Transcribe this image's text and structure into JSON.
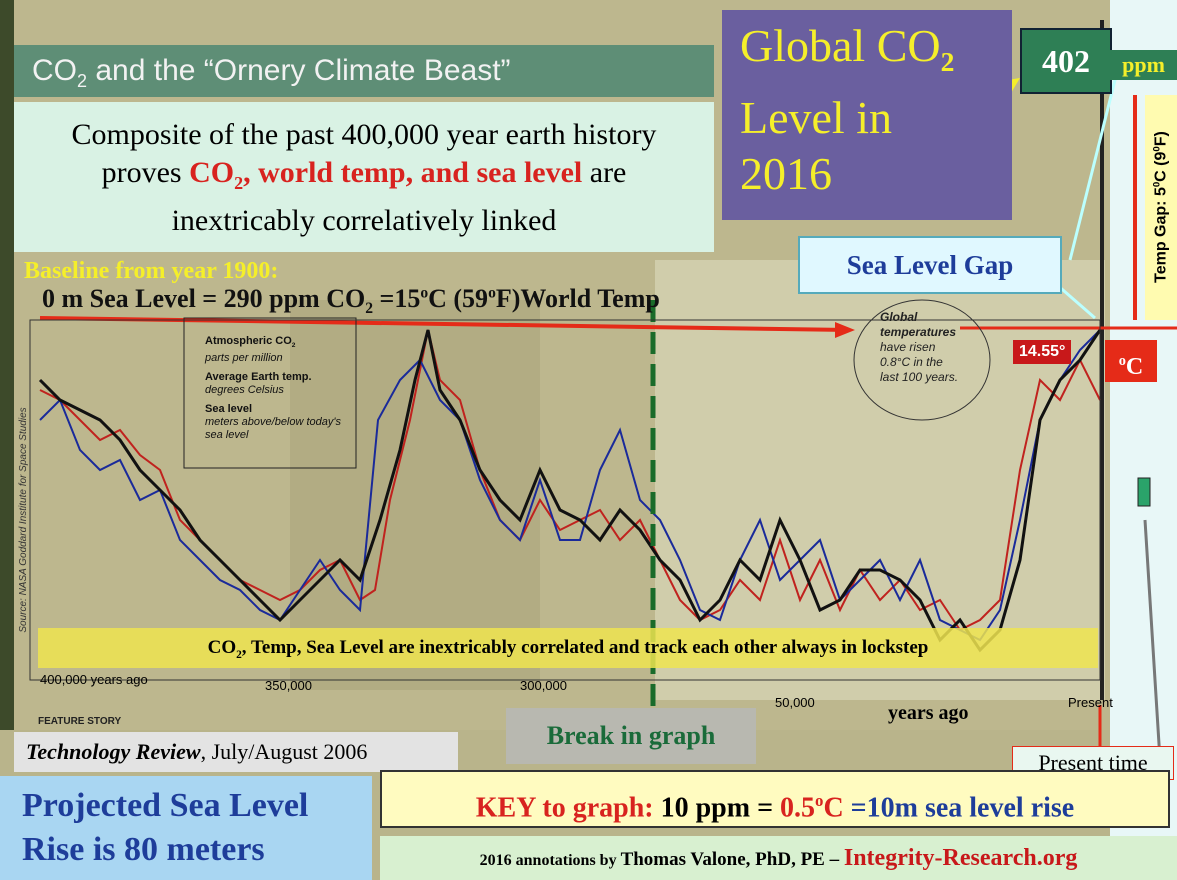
{
  "title": {
    "a": "CO",
    "sub": "2",
    "b": " and the “Ornery Climate Beast”"
  },
  "intro": {
    "a": "Composite of the past 400,000 year earth history proves ",
    "red_a": "CO",
    "red_sub": "2",
    "red_b": ", world temp, and sea level",
    "b": " are inextricably correlatively linked"
  },
  "global_box": {
    "line1": "Global CO",
    "sub": "2",
    "line2": "Level in",
    "line3": "2016"
  },
  "ppm": {
    "value": "402",
    "unit": "ppm"
  },
  "temp_gap": {
    "a": "Temp Gap: 5",
    "sup1": "0",
    "b": "C (9",
    "sup2": "0",
    "c": "F)"
  },
  "sea_level_gap": "Sea Level Gap",
  "baseline": {
    "title": "Baseline from year 1900:",
    "a": "0 m Sea Level = 290 ppm CO",
    "sub": "2",
    "b": " =15",
    "sup1": "o",
    "c": "C (59",
    "sup2": "o",
    "d": "F)World Temp"
  },
  "legend": {
    "co2": {
      "name": "Atmospheric CO",
      "sub": "2",
      "desc": "parts per million"
    },
    "temp": {
      "name": "Average Earth temp.",
      "desc": "degrees Celsius"
    },
    "sea": {
      "name": "Sea level",
      "desc": "meters above/below today's sea level"
    }
  },
  "note": {
    "a": "Global",
    "b": "temperatures",
    "c": "have risen",
    "d": "0.8°C in the",
    "e": "last 100 years."
  },
  "temp_now": "14.55°",
  "deg_c": {
    "sup": "o",
    "c": "C"
  },
  "source": "Source: NASA Goddard Institute for Space Studies",
  "banner": {
    "a": "CO",
    "sub": "2",
    "b": ", Temp, Sea Level are inextricably correlated and track each other always in lockstep"
  },
  "axis": {
    "left": "400,000 years ago",
    "t350": "350,000",
    "t300": "300,000",
    "t50": "50,000",
    "years": "years ago",
    "present": "Present"
  },
  "feature": "FEATURE STORY",
  "citation": {
    "a": "Technology Review",
    "b": ", July/August 2006"
  },
  "break": "Break in graph",
  "present_time": "Present time",
  "key": {
    "a": "KEY to graph: ",
    "b": "10 ppm = ",
    "c": "0.5",
    "sup": "o",
    "d": "C",
    "e": " =10m sea level rise"
  },
  "projected": {
    "line1": "Projected Sea Level",
    "line2": "Rise is 80 meters"
  },
  "footer": {
    "a": "2016 annotations by ",
    "b": "Thomas Valone, PhD, PE – ",
    "c": "Integrity-Research.org"
  }
}
